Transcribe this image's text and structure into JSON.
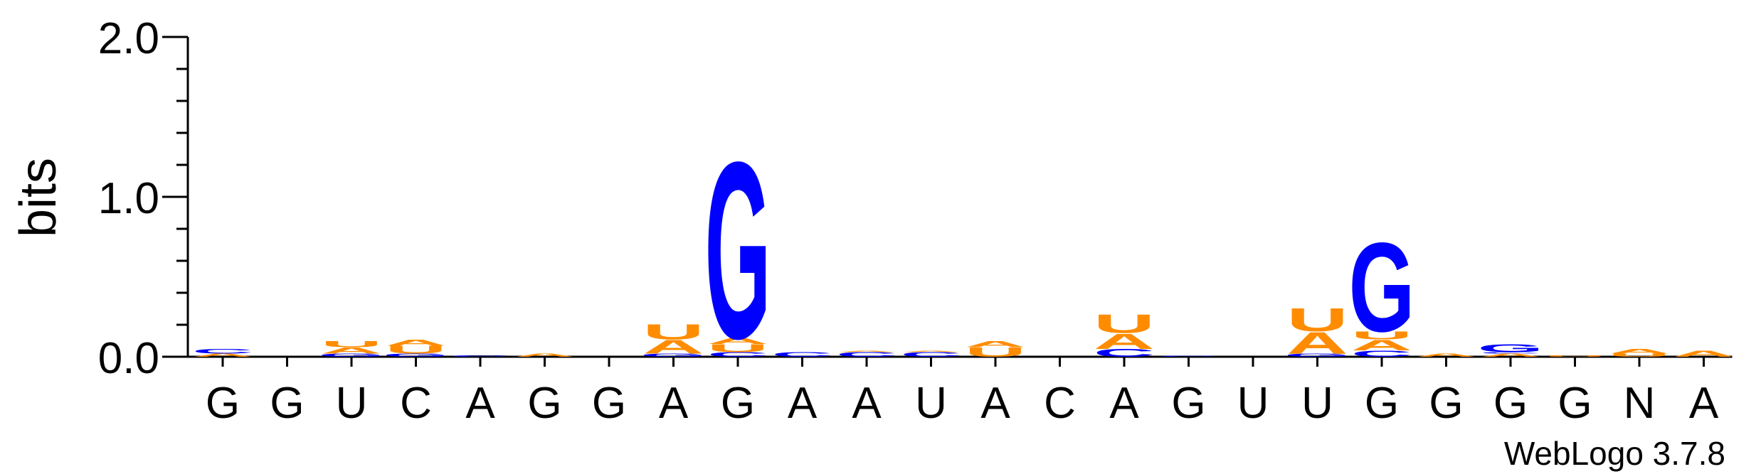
{
  "credit": "WebLogo 3.7.8",
  "colors": {
    "A": "#FF8C00",
    "U": "#FF8C00",
    "G": "#0000FF",
    "C": "#0000FF",
    "N": "#000000",
    "axis": "#000000"
  },
  "chart_data": {
    "type": "sequence-logo",
    "ylabel": "bits",
    "ylim": [
      0,
      2.0
    ],
    "yticks": [
      {
        "value": 0,
        "label": "0.0"
      },
      {
        "value": 1,
        "label": "1.0"
      },
      {
        "value": 2,
        "label": "2.0"
      }
    ],
    "minor_step": 0.2,
    "positions": [
      {
        "label": "G",
        "stack": [
          {
            "letter": "A",
            "bits": 0.02
          },
          {
            "letter": "C",
            "bits": 0.03
          }
        ]
      },
      {
        "label": "G",
        "stack": []
      },
      {
        "label": "U",
        "stack": [
          {
            "letter": "G",
            "bits": 0.02
          },
          {
            "letter": "A",
            "bits": 0.04
          },
          {
            "letter": "U",
            "bits": 0.04
          }
        ]
      },
      {
        "label": "C",
        "stack": [
          {
            "letter": "G",
            "bits": 0.02
          },
          {
            "letter": "U",
            "bits": 0.05
          },
          {
            "letter": "A",
            "bits": 0.04
          }
        ]
      },
      {
        "label": "A",
        "stack": [
          {
            "letter": "C",
            "bits": 0.01
          }
        ]
      },
      {
        "label": "G",
        "stack": [
          {
            "letter": "A",
            "bits": 0.02
          }
        ]
      },
      {
        "label": "G",
        "stack": []
      },
      {
        "label": "A",
        "stack": [
          {
            "letter": "G",
            "bits": 0.02
          },
          {
            "letter": "A",
            "bits": 0.09
          },
          {
            "letter": "U",
            "bits": 0.1
          }
        ]
      },
      {
        "label": "G",
        "stack": [
          {
            "letter": "C",
            "bits": 0.03
          },
          {
            "letter": "U",
            "bits": 0.05
          },
          {
            "letter": "A",
            "bits": 0.04
          },
          {
            "letter": "G",
            "bits": 1.15
          }
        ]
      },
      {
        "label": "A",
        "stack": [
          {
            "letter": "C",
            "bits": 0.03
          }
        ]
      },
      {
        "label": "A",
        "stack": [
          {
            "letter": "C",
            "bits": 0.03
          },
          {
            "letter": "A",
            "bits": 0.01
          }
        ]
      },
      {
        "label": "U",
        "stack": [
          {
            "letter": "C",
            "bits": 0.03
          },
          {
            "letter": "A",
            "bits": 0.01
          }
        ]
      },
      {
        "label": "A",
        "stack": [
          {
            "letter": "U",
            "bits": 0.06
          },
          {
            "letter": "A",
            "bits": 0.04
          }
        ]
      },
      {
        "label": "C",
        "stack": []
      },
      {
        "label": "A",
        "stack": [
          {
            "letter": "C",
            "bits": 0.05
          },
          {
            "letter": "A",
            "bits": 0.1
          },
          {
            "letter": "U",
            "bits": 0.12
          }
        ]
      },
      {
        "label": "G",
        "stack": [
          {
            "letter": "C",
            "bits": 0.005
          }
        ]
      },
      {
        "label": "U",
        "stack": []
      },
      {
        "label": "U",
        "stack": [
          {
            "letter": "G",
            "bits": 0.02
          },
          {
            "letter": "A",
            "bits": 0.14
          },
          {
            "letter": "U",
            "bits": 0.15
          }
        ]
      },
      {
        "label": "G",
        "stack": [
          {
            "letter": "C",
            "bits": 0.04
          },
          {
            "letter": "A",
            "bits": 0.07
          },
          {
            "letter": "U",
            "bits": 0.05
          },
          {
            "letter": "G",
            "bits": 0.58
          }
        ]
      },
      {
        "label": "G",
        "stack": [
          {
            "letter": "A",
            "bits": 0.02
          }
        ]
      },
      {
        "label": "G",
        "stack": [
          {
            "letter": "A",
            "bits": 0.02
          },
          {
            "letter": "C",
            "bits": 0.01
          },
          {
            "letter": "G",
            "bits": 0.05
          }
        ]
      },
      {
        "label": "G",
        "stack": [
          {
            "letter": "U",
            "bits": 0.01
          }
        ]
      },
      {
        "label": "N",
        "stack": [
          {
            "letter": "U",
            "bits": 0.02
          },
          {
            "letter": "A",
            "bits": 0.03
          }
        ]
      },
      {
        "label": "A",
        "stack": [
          {
            "letter": "A",
            "bits": 0.04
          }
        ]
      }
    ]
  }
}
